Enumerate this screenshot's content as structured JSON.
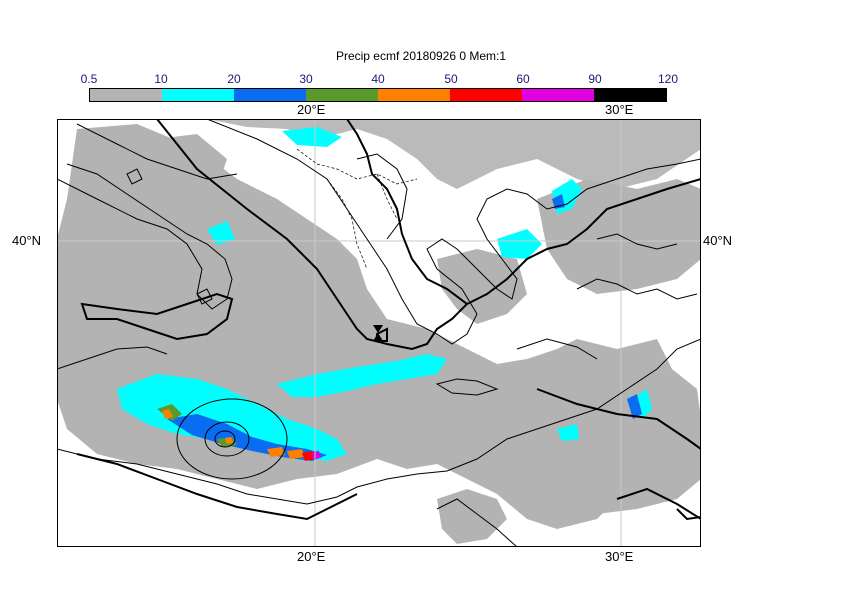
{
  "title": "Precip ecmf 20180926 0 Mem:1",
  "colorbar": {
    "labels": [
      "0.5",
      "10",
      "20",
      "30",
      "40",
      "50",
      "60",
      "90",
      "120"
    ],
    "colors": [
      "#b3b3b3",
      "#00ffff",
      "#0a6cf0",
      "#5a9a2a",
      "#ff8000",
      "#ff0000",
      "#e000e0",
      "#000000"
    ]
  },
  "axes": {
    "top_x": [
      "20°E",
      "30°E"
    ],
    "bottom_x": [
      "20°E",
      "30°E"
    ],
    "left_y": "40°N",
    "right_y": "40°N"
  }
}
